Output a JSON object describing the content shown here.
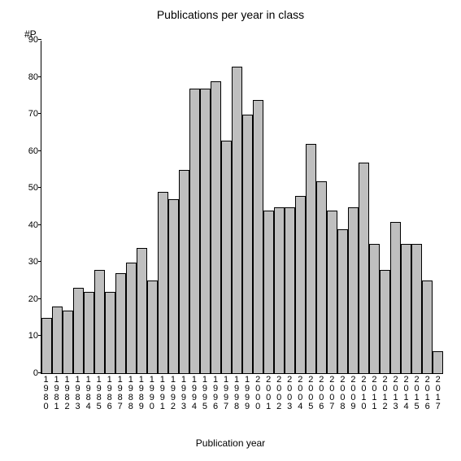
{
  "chart": {
    "type": "bar",
    "title": "Publications per year in class",
    "ylabel": "#P",
    "xlabel": "Publication year",
    "title_fontsize": 14,
    "label_fontsize": 12,
    "tick_fontsize": 11,
    "background_color": "#ffffff",
    "axis_color": "#000000",
    "bar_fill": "#bfbfbf",
    "bar_border": "#000000",
    "ylim": [
      0,
      90
    ],
    "ytick_step": 10,
    "yticks": [
      0,
      10,
      20,
      30,
      40,
      50,
      60,
      70,
      80,
      90
    ],
    "categories": [
      "1980",
      "1981",
      "1982",
      "1983",
      "1984",
      "1985",
      "1986",
      "1987",
      "1988",
      "1989",
      "1990",
      "1991",
      "1992",
      "1993",
      "1994",
      "1995",
      "1996",
      "1997",
      "1998",
      "1999",
      "2000",
      "2001",
      "2002",
      "2003",
      "2004",
      "2005",
      "2006",
      "2007",
      "2008",
      "2009",
      "2010",
      "2011",
      "2012",
      "2013",
      "2014",
      "2015",
      "2016",
      "2017"
    ],
    "values": [
      15,
      18,
      17,
      23,
      22,
      28,
      22,
      27,
      30,
      34,
      25,
      49,
      47,
      55,
      77,
      77,
      79,
      63,
      83,
      70,
      74,
      44,
      45,
      45,
      48,
      62,
      52,
      44,
      39,
      45,
      57,
      35,
      28,
      41,
      35,
      35,
      25,
      6
    ]
  }
}
